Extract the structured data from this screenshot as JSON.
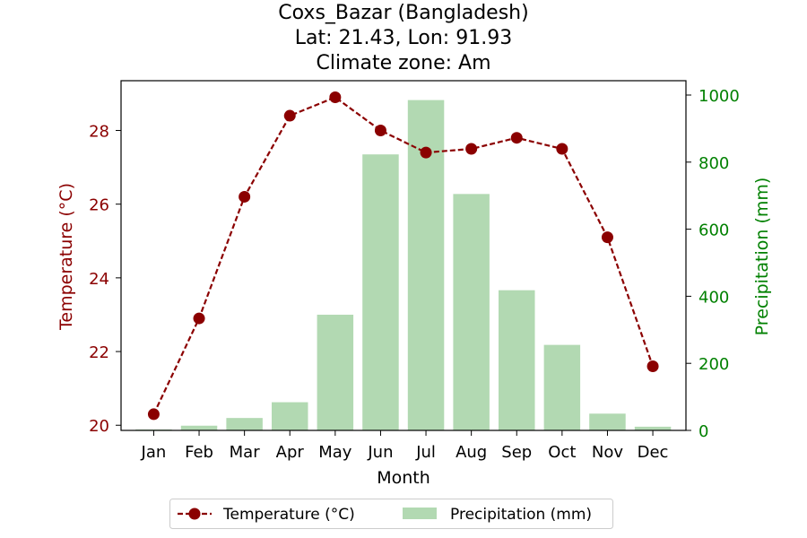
{
  "chart_data": {
    "type": "bar+line",
    "title_lines": [
      "Coxs_Bazar (Bangladesh)",
      "Lat: 21.43, Lon: 91.93",
      "Climate zone: Am"
    ],
    "xlabel": "Month",
    "ylabel_left": "Temperature (°C)",
    "ylabel_right": "Precipitation (mm)",
    "categories": [
      "Jan",
      "Feb",
      "Mar",
      "Apr",
      "May",
      "Jun",
      "Jul",
      "Aug",
      "Sep",
      "Oct",
      "Nov",
      "Dec"
    ],
    "temperature": {
      "name": "Temperature (°C)",
      "values": [
        20.3,
        22.9,
        26.2,
        28.4,
        28.9,
        28.0,
        27.4,
        27.5,
        27.8,
        27.5,
        25.1,
        21.6
      ],
      "color": "#8b0000"
    },
    "precipitation": {
      "name": "Precipitation (mm)",
      "values": [
        3,
        14,
        37,
        84,
        345,
        823,
        985,
        705,
        418,
        255,
        50,
        11
      ],
      "color": "#b2d9b2"
    },
    "ylim_left": [
      19.86,
      29.35
    ],
    "ylim_right": [
      0,
      1000
    ],
    "yticks_left": [
      20,
      22,
      24,
      26,
      28
    ],
    "yticks_right": [
      0,
      200,
      400,
      600,
      800,
      1000
    ],
    "left_axis_color": "#8b0000",
    "right_axis_color": "#008000",
    "legend_placement": "bottom-center"
  }
}
